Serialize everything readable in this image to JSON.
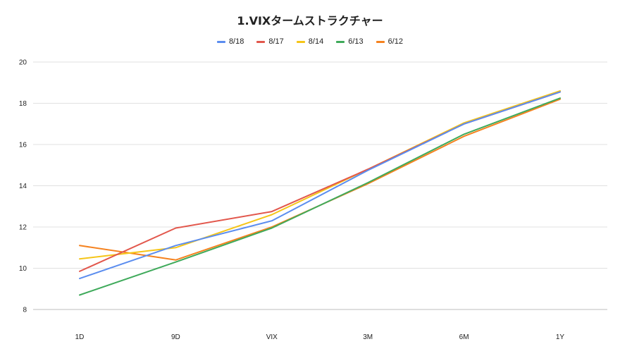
{
  "chart_data": {
    "type": "line",
    "title": "1.VIXタームストラクチャー",
    "categories": [
      "1D",
      "9D",
      "VIX",
      "3M",
      "6M",
      "1Y"
    ],
    "ylim": [
      8,
      20
    ],
    "yticks": [
      8,
      10,
      12,
      14,
      16,
      18,
      20
    ],
    "grid": true,
    "legend_position": "top",
    "series": [
      {
        "name": "8/18",
        "color": "#5b8def",
        "values": [
          9.5,
          11.1,
          12.3,
          14.75,
          17.0,
          18.55
        ]
      },
      {
        "name": "8/17",
        "color": "#e2574c",
        "values": [
          9.85,
          11.95,
          12.75,
          14.8,
          17.0,
          18.55
        ]
      },
      {
        "name": "8/14",
        "color": "#f5c518",
        "values": [
          10.45,
          11.0,
          12.6,
          14.8,
          17.05,
          18.6
        ]
      },
      {
        "name": "6/13",
        "color": "#3faa5b",
        "values": [
          8.7,
          10.3,
          11.95,
          14.15,
          16.5,
          18.25
        ]
      },
      {
        "name": "6/12",
        "color": "#f5821f",
        "values": [
          11.1,
          10.4,
          12.0,
          14.1,
          16.4,
          18.2
        ]
      }
    ]
  }
}
